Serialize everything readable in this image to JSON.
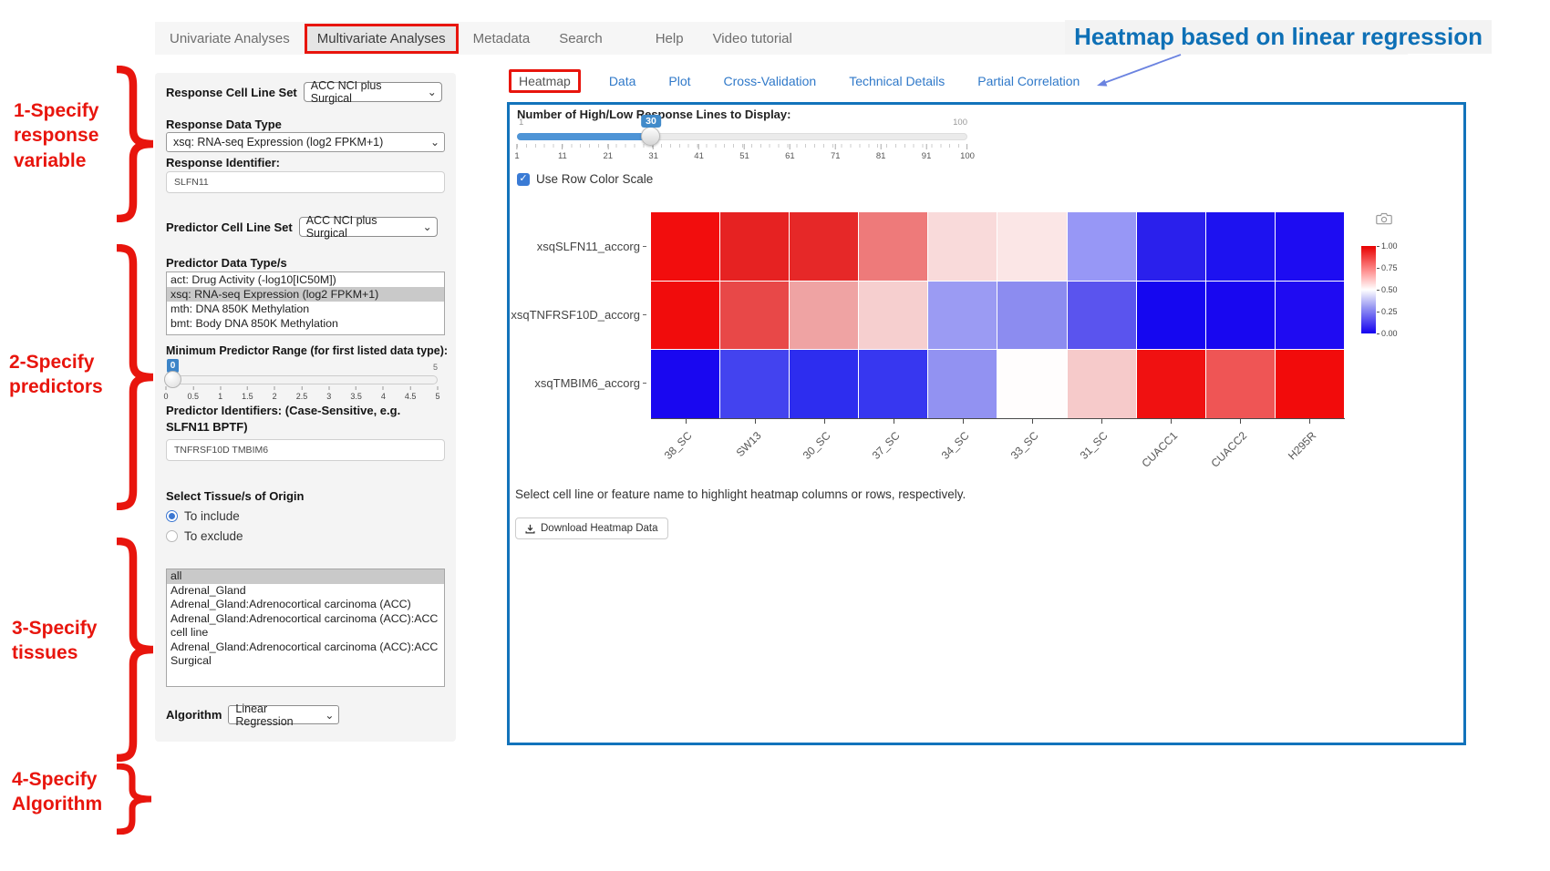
{
  "nav": {
    "items": [
      {
        "label": "Univariate Analyses"
      },
      {
        "label": "Multivariate Analyses",
        "highlighted": true
      },
      {
        "label": "Metadata"
      },
      {
        "label": "Search"
      },
      {
        "label": "Help",
        "gap_before": true
      },
      {
        "label": "Video tutorial"
      }
    ]
  },
  "annotations": {
    "heading": "Heatmap based on linear regression",
    "step1": "1-Specify\nresponse\nvariable",
    "step2": "2-Specify\npredictors",
    "step3": "3-Specify\ntissues",
    "step4": "4-Specify\nAlgorithm",
    "red": "#e8150d",
    "blue_heading": "#0e70b6"
  },
  "form": {
    "response_cell_line_set": {
      "label": "Response Cell Line Set",
      "value": "ACC NCI plus Surgical"
    },
    "response_data_type": {
      "label": "Response Data Type",
      "value": "xsq: RNA-seq Expression (log2 FPKM+1)"
    },
    "response_identifier": {
      "label": "Response Identifier:",
      "value": "SLFN11"
    },
    "predictor_cell_line_set": {
      "label": "Predictor Cell Line Set",
      "value": "ACC NCI plus Surgical"
    },
    "predictor_data_types": {
      "label": "Predictor Data Type/s",
      "options": [
        "act: Drug Activity (-log10[IC50M])",
        "xsq: RNA-seq Expression (log2 FPKM+1)",
        "mth: DNA 850K Methylation",
        "bmt: Body DNA 850K Methylation"
      ],
      "selected_index": 1
    },
    "min_predictor_range": {
      "label": "Minimum Predictor Range (for first listed data type):",
      "value": "0",
      "max": "5",
      "ticks": [
        "0",
        "0.5",
        "1",
        "1.5",
        "2",
        "2.5",
        "3",
        "3.5",
        "4",
        "4.5",
        "5"
      ]
    },
    "predictor_identifiers": {
      "label": "Predictor Identifiers: (Case-Sensitive, e.g. SLFN11 BPTF)",
      "value": "TNFRSF10D TMBIM6"
    },
    "tissue": {
      "label": "Select Tissue/s of Origin",
      "radios": [
        {
          "label": "To include",
          "checked": true
        },
        {
          "label": "To exclude",
          "checked": false
        }
      ],
      "options": [
        "all",
        "Adrenal_Gland",
        "Adrenal_Gland:Adrenocortical carcinoma (ACC)",
        "Adrenal_Gland:Adrenocortical carcinoma (ACC):ACC cell line",
        "Adrenal_Gland:Adrenocortical carcinoma (ACC):ACC Surgical"
      ],
      "selected_index": 0
    },
    "algorithm": {
      "label": "Algorithm",
      "value": "Linear Regression"
    }
  },
  "tabs": [
    {
      "label": "Heatmap",
      "active": true,
      "highlighted": true
    },
    {
      "label": "Data"
    },
    {
      "label": "Plot"
    },
    {
      "label": "Cross-Validation"
    },
    {
      "label": "Technical Details"
    },
    {
      "label": "Partial Correlation"
    }
  ],
  "main": {
    "lines_slider": {
      "label": "Number of High/Low Response Lines to Display:",
      "min": "1",
      "max": "100",
      "value": "30",
      "ticks": [
        "1",
        "11",
        "21",
        "31",
        "41",
        "51",
        "61",
        "71",
        "81",
        "91",
        "100"
      ]
    },
    "row_color_scale": {
      "label": "Use Row Color Scale",
      "checked": true
    },
    "hint": "Select cell line or feature name to highlight heatmap columns or rows, respectively.",
    "download_button": "Download Heatmap Data"
  },
  "chart_data": {
    "type": "heatmap",
    "rows": [
      "xsqSLFN11_accorg",
      "xsqTNFRSF10D_accorg",
      "xsqTMBIM6_accorg"
    ],
    "columns": [
      "38_SC",
      "SW13",
      "30_SC",
      "37_SC",
      "34_SC",
      "33_SC",
      "31_SC",
      "CUACC1",
      "CUACC2",
      "H295R"
    ],
    "cell_colors": [
      [
        "#f20d0d",
        "#e62222",
        "#e62828",
        "#ee7a7a",
        "#f9dada",
        "#fbe6e6",
        "#9797f6",
        "#2a20ec",
        "#1d12f0",
        "#1d0cf2"
      ],
      [
        "#f10c0c",
        "#e84848",
        "#efa3a3",
        "#f6cfcf",
        "#9b9bf3",
        "#8c8cf0",
        "#5a54ee",
        "#1507f0",
        "#1807f0",
        "#1f0bf2"
      ],
      [
        "#1907f0",
        "#4343ef",
        "#2d2def",
        "#3737f0",
        "#9292f2",
        "#fffdfd",
        "#f6caca",
        "#f01111",
        "#ef5555",
        "#f20b0b"
      ]
    ],
    "colorbar": {
      "tick_labels": [
        "1.00",
        "0.75",
        "0.50",
        "0.25",
        "0.00"
      ],
      "top_color": "#e80000",
      "mid_color": "#ffffff",
      "bottom_color": "#1400f0"
    }
  }
}
